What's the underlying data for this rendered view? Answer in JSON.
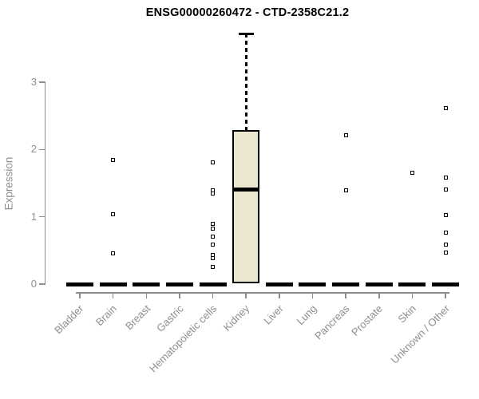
{
  "page": {
    "background": "#ffffff"
  },
  "chart_data": {
    "type": "boxplot",
    "title": "ENSG00000260472 - CTD-2358C21.2",
    "ylabel": "Expression",
    "xlabel": "",
    "ylim": [
      0,
      3.85
    ],
    "yticks": [
      0,
      1,
      2,
      3
    ],
    "grid": false,
    "legend_position": "none",
    "categories": [
      "Bladder",
      "Brain",
      "Breast",
      "Gastric",
      "Hematopoietic cells",
      "Kidney",
      "Liver",
      "Lung",
      "Pancreas",
      "Prostate",
      "Skin",
      "Unknown / Other"
    ],
    "boxes": [
      {
        "category": "Bladder",
        "q1": 0,
        "median": 0,
        "q3": 0,
        "whisker_low": 0,
        "whisker_high": 0,
        "outliers": []
      },
      {
        "category": "Brain",
        "q1": 0,
        "median": 0,
        "q3": 0,
        "whisker_low": 0,
        "whisker_high": 0,
        "outliers": [
          1.84,
          1.04,
          0.46
        ]
      },
      {
        "category": "Breast",
        "q1": 0,
        "median": 0,
        "q3": 0,
        "whisker_low": 0,
        "whisker_high": 0,
        "outliers": []
      },
      {
        "category": "Gastric",
        "q1": 0,
        "median": 0,
        "q3": 0,
        "whisker_low": 0,
        "whisker_high": 0,
        "outliers": []
      },
      {
        "category": "Hematopoietic cells",
        "q1": 0,
        "median": 0,
        "q3": 0,
        "whisker_low": 0,
        "whisker_high": 0,
        "outliers": [
          1.81,
          1.39,
          1.34,
          0.9,
          0.82,
          0.71,
          0.59,
          0.43,
          0.38,
          0.25
        ]
      },
      {
        "category": "Kidney",
        "q1": 0.01,
        "median": 1.41,
        "q3": 2.29,
        "whisker_low": 0.01,
        "whisker_high": 3.72,
        "outliers": []
      },
      {
        "category": "Liver",
        "q1": 0,
        "median": 0,
        "q3": 0,
        "whisker_low": 0,
        "whisker_high": 0,
        "outliers": []
      },
      {
        "category": "Lung",
        "q1": 0,
        "median": 0,
        "q3": 0,
        "whisker_low": 0,
        "whisker_high": 0,
        "outliers": []
      },
      {
        "category": "Pancreas",
        "q1": 0,
        "median": 0,
        "q3": 0,
        "whisker_low": 0,
        "whisker_high": 0,
        "outliers": [
          2.21,
          1.39
        ]
      },
      {
        "category": "Prostate",
        "q1": 0,
        "median": 0,
        "q3": 0,
        "whisker_low": 0,
        "whisker_high": 0,
        "outliers": []
      },
      {
        "category": "Skin",
        "q1": 0,
        "median": 0,
        "q3": 0,
        "whisker_low": 0,
        "whisker_high": 0,
        "outliers": [
          1.66
        ]
      },
      {
        "category": "Unknown / Other",
        "q1": 0,
        "median": 0,
        "q3": 0,
        "whisker_low": 0,
        "whisker_high": 0,
        "outliers": [
          2.62,
          1.58,
          1.41,
          1.02,
          0.76,
          0.59,
          0.47
        ]
      }
    ],
    "colors": {
      "box_fill": "#ece7cf",
      "box_border": "#000000",
      "median": "#000000",
      "whisker": "#000000",
      "outlier_border": "#000000",
      "outlier_fill": "#ffffff",
      "axis": "#8e8e8e",
      "tick_text": "#8e8e8e",
      "title_text": "#000000"
    }
  }
}
